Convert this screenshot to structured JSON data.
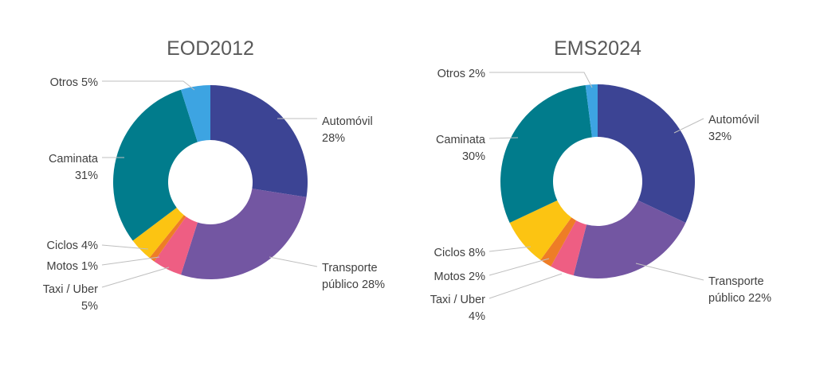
{
  "chart_data": [
    {
      "type": "pie",
      "subtype": "donut",
      "title": "EOD2012",
      "series": [
        {
          "name": "Automóvil",
          "value": 28,
          "color": "#3C4494",
          "label_lines": [
            "Automóvil",
            "28%"
          ]
        },
        {
          "name": "Transporte público",
          "value": 28,
          "color": "#7356A2",
          "label_lines": [
            "Transporte",
            "público 28%"
          ]
        },
        {
          "name": "Taxi / Uber",
          "value": 5,
          "color": "#EE5E83",
          "label_lines": [
            "Taxi / Uber",
            "5%"
          ]
        },
        {
          "name": "Motos",
          "value": 1,
          "color": "#EE7D26",
          "label_lines": [
            "Motos 1%"
          ]
        },
        {
          "name": "Ciclos",
          "value": 4,
          "color": "#FCC412",
          "label_lines": [
            "Ciclos 4%"
          ]
        },
        {
          "name": "Caminata",
          "value": 31,
          "color": "#017C8C",
          "label_lines": [
            "Caminata",
            "31%"
          ]
        },
        {
          "name": "Otros",
          "value": 5,
          "color": "#3DA4E2",
          "label_lines": [
            "Otros 5%"
          ]
        }
      ]
    },
    {
      "type": "pie",
      "subtype": "donut",
      "title": "EMS2024",
      "series": [
        {
          "name": "Automóvil",
          "value": 32,
          "color": "#3C4494",
          "label_lines": [
            "Automóvil",
            "32%"
          ]
        },
        {
          "name": "Transporte público",
          "value": 22,
          "color": "#7356A2",
          "label_lines": [
            "Transporte",
            "público 22%"
          ]
        },
        {
          "name": "Taxi / Uber",
          "value": 4,
          "color": "#EE5E83",
          "label_lines": [
            "Taxi / Uber",
            "4%"
          ]
        },
        {
          "name": "Motos",
          "value": 2,
          "color": "#EE7D26",
          "label_lines": [
            "Motos 2%"
          ]
        },
        {
          "name": "Ciclos",
          "value": 8,
          "color": "#FCC412",
          "label_lines": [
            "Ciclos 8%"
          ]
        },
        {
          "name": "Caminata",
          "value": 30,
          "color": "#017C8C",
          "label_lines": [
            "Caminata",
            "30%"
          ]
        },
        {
          "name": "Otros",
          "value": 2,
          "color": "#3DA4E2",
          "label_lines": [
            "Otros 2%"
          ]
        }
      ]
    }
  ]
}
